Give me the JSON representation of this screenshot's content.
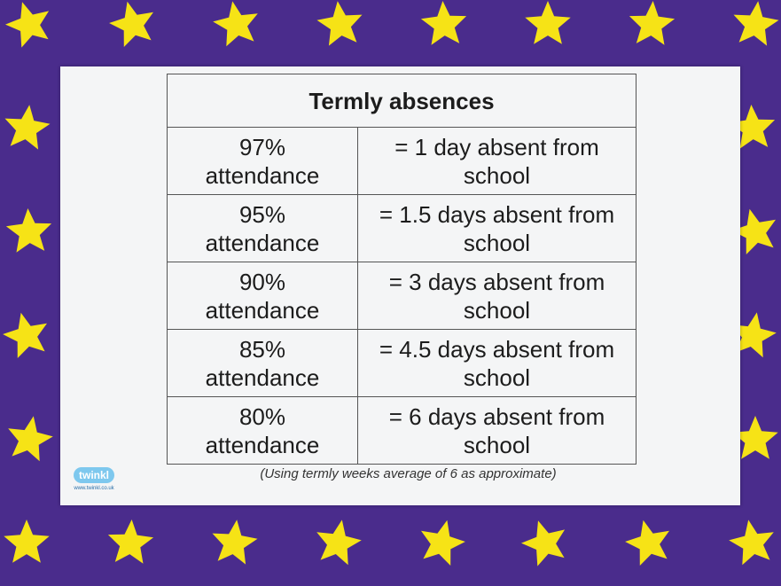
{
  "table": {
    "title": "Termly absences",
    "rows": [
      [
        "97% attendance",
        "= 1 day absent from school"
      ],
      [
        "95% attendance",
        "= 1.5 days absent from school"
      ],
      [
        "90% attendance",
        "= 3 days absent from school"
      ],
      [
        "85% attendance",
        "= 4.5 days absent from school"
      ],
      [
        "80% attendance",
        "= 6 days absent from school"
      ]
    ]
  },
  "footnote": "(Using termly weeks average of 6 as approximate)",
  "logo": {
    "name": "twinkl",
    "url": "www.twinkl.co.uk"
  }
}
